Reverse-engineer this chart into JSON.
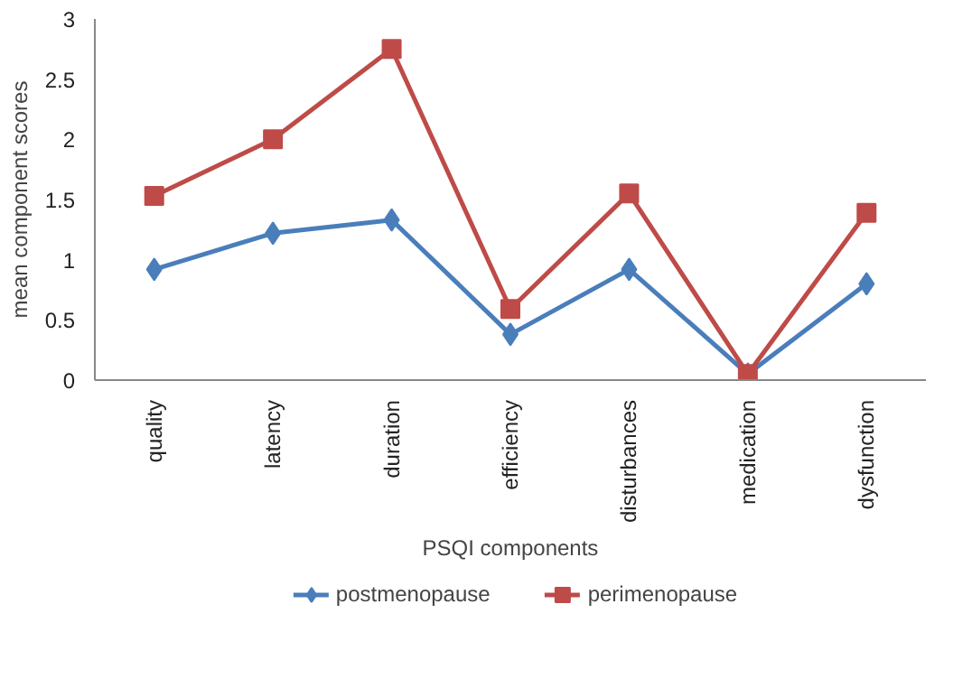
{
  "chart_data": {
    "type": "line",
    "xlabel": "PSQI components",
    "ylabel": "mean component scores",
    "categories": [
      "quality",
      "latency",
      "duration",
      "efficiency",
      "disturbances",
      "medication",
      "dysfunction"
    ],
    "series": [
      {
        "name": "postmenopause",
        "color": "#4a7ebb",
        "marker": "diamond",
        "values": [
          0.92,
          1.22,
          1.33,
          0.38,
          0.92,
          0.05,
          0.8
        ]
      },
      {
        "name": "perimenopause",
        "color": "#be4b48",
        "marker": "square",
        "values": [
          1.53,
          2.0,
          2.75,
          0.59,
          1.55,
          0.05,
          1.39
        ]
      }
    ],
    "ylim": [
      0,
      3
    ],
    "yticks": [
      0,
      0.5,
      1,
      1.5,
      2,
      2.5,
      3
    ],
    "grid": false,
    "legend": "bottom"
  }
}
